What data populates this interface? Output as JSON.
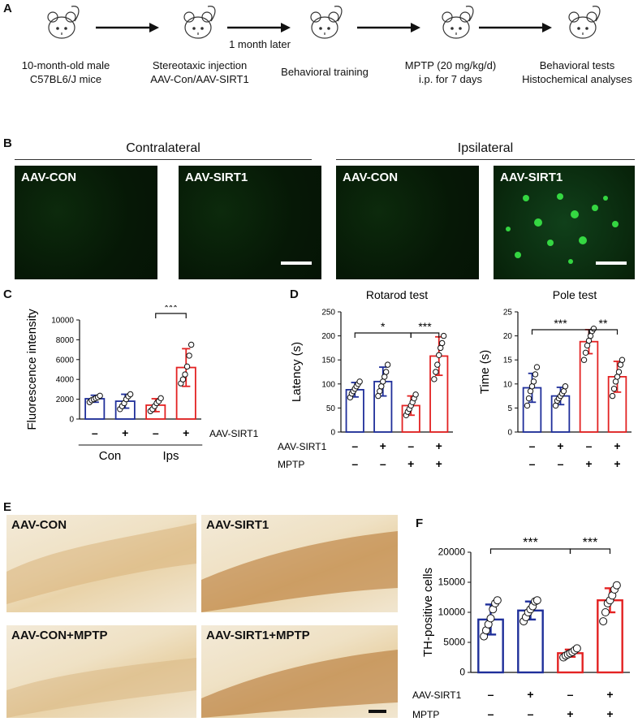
{
  "panels": {
    "A": "A",
    "B": "B",
    "C": "C",
    "D": "D",
    "E": "E",
    "F": "F"
  },
  "workflow": {
    "steps": [
      "10-month-old male\nC57BL6/J mice",
      "Stereotaxic injection\nAAV-Con/AAV-SIRT1",
      "Behavioral training",
      "MPTP (20 mg/kg/d)\ni.p. for 7 days",
      "Behavioral tests\nHistochemical analyses"
    ],
    "arrow_note": "1 month later"
  },
  "panelB": {
    "contralateral": "Contralateral",
    "ipsilateral": "Ipsilateral",
    "images": [
      "AAV-CON",
      "AAV-SIRT1",
      "AAV-CON",
      "AAV-SIRT1"
    ]
  },
  "panelE": {
    "images": [
      "AAV-CON",
      "AAV-SIRT1",
      "AAV-CON+MPTP",
      "AAV-SIRT1+MPTP"
    ]
  },
  "chart_data": [
    {
      "id": "C",
      "type": "bar",
      "ylabel": "Fluorescence intensity",
      "ylim": [
        0,
        10000
      ],
      "yticks": [
        0,
        2000,
        4000,
        6000,
        8000,
        10000
      ],
      "series": [
        {
          "color": "#1f2f9a",
          "mean": 2050,
          "sd": 350,
          "points": [
            1700,
            1900,
            2000,
            2100,
            2200,
            2350
          ]
        },
        {
          "color": "#1f2f9a",
          "mean": 1800,
          "sd": 700,
          "points": [
            1000,
            1300,
            1600,
            2000,
            2300,
            2500
          ]
        },
        {
          "color": "#e32222",
          "mean": 1400,
          "sd": 650,
          "points": [
            800,
            1000,
            1300,
            1600,
            1800,
            2100
          ]
        },
        {
          "color": "#e32222",
          "mean": 5200,
          "sd": 1900,
          "points": [
            3600,
            4000,
            4500,
            5300,
            6400,
            7500
          ]
        }
      ],
      "factor_rows": [
        {
          "label": "AAV-SIRT1",
          "values": [
            "–",
            "+",
            "–",
            "+"
          ]
        }
      ],
      "group_labels": [
        "Con",
        "Ips"
      ],
      "significance": [
        {
          "from": 2,
          "to": 3,
          "label": "***"
        }
      ]
    },
    {
      "id": "D-rotarod",
      "type": "bar",
      "title": "Rotarod test",
      "ylabel": "Latency (s)",
      "ylim": [
        0,
        250
      ],
      "yticks": [
        0,
        50,
        100,
        150,
        200,
        250
      ],
      "series": [
        {
          "color": "#1f2f9a",
          "mean": 88,
          "sd": 15,
          "points": [
            72,
            80,
            85,
            90,
            95,
            100,
            105
          ]
        },
        {
          "color": "#1f2f9a",
          "mean": 105,
          "sd": 30,
          "points": [
            75,
            85,
            95,
            105,
            115,
            125,
            140
          ]
        },
        {
          "color": "#e32222",
          "mean": 55,
          "sd": 20,
          "points": [
            35,
            42,
            48,
            55,
            62,
            70,
            78
          ]
        },
        {
          "color": "#e32222",
          "mean": 158,
          "sd": 40,
          "points": [
            110,
            125,
            140,
            160,
            175,
            185,
            200
          ]
        }
      ],
      "factor_rows": [
        {
          "label": "AAV-SIRT1",
          "values": [
            "–",
            "+",
            "–",
            "+"
          ]
        },
        {
          "label": "MPTP",
          "values": [
            "–",
            "–",
            "+",
            "+"
          ]
        }
      ],
      "significance": [
        {
          "from": 0,
          "to": 2,
          "label": "*"
        },
        {
          "from": 2,
          "to": 3,
          "label": "***"
        }
      ]
    },
    {
      "id": "D-pole",
      "type": "bar",
      "title": "Pole test",
      "ylabel": "Time (s)",
      "ylim": [
        0,
        25
      ],
      "yticks": [
        0,
        5,
        10,
        15,
        20,
        25
      ],
      "series": [
        {
          "color": "#1f2f9a",
          "mean": 9.2,
          "sd": 3,
          "points": [
            5.5,
            7,
            8.5,
            9.5,
            10.5,
            12,
            13.5
          ]
        },
        {
          "color": "#1f2f9a",
          "mean": 7.5,
          "sd": 1.8,
          "points": [
            5.5,
            6.5,
            7,
            7.5,
            8,
            8.5,
            9.5
          ]
        },
        {
          "color": "#e32222",
          "mean": 18.8,
          "sd": 2.5,
          "points": [
            15,
            16.5,
            18,
            19,
            20,
            21,
            21.5
          ]
        },
        {
          "color": "#e32222",
          "mean": 11.5,
          "sd": 3.2,
          "points": [
            7.5,
            9,
            10.5,
            11.5,
            12.5,
            14,
            15
          ]
        }
      ],
      "factor_rows": [
        {
          "label": "",
          "values": [
            "–",
            "+",
            "–",
            "+"
          ]
        },
        {
          "label": "",
          "values": [
            "–",
            "–",
            "+",
            "+"
          ]
        }
      ],
      "significance": [
        {
          "from": 0,
          "to": 2,
          "label": "***"
        },
        {
          "from": 2,
          "to": 3,
          "label": "**"
        }
      ]
    },
    {
      "id": "F",
      "type": "bar",
      "ylabel": "TH-positive cells",
      "ylim": [
        0,
        20000
      ],
      "yticks": [
        0,
        5000,
        10000,
        15000,
        20000
      ],
      "series": [
        {
          "color": "#1f2f9a",
          "mean": 8800,
          "sd": 2500,
          "points": [
            6000,
            7000,
            8000,
            9000,
            10500,
            11500,
            12000
          ]
        },
        {
          "color": "#1f2f9a",
          "mean": 10300,
          "sd": 1500,
          "points": [
            8500,
            9200,
            10000,
            10500,
            11000,
            11800,
            12000
          ]
        },
        {
          "color": "#e32222",
          "mean": 3200,
          "sd": 600,
          "points": [
            2500,
            2800,
            3000,
            3200,
            3400,
            3700,
            4000
          ]
        },
        {
          "color": "#e32222",
          "mean": 12000,
          "sd": 2000,
          "points": [
            8500,
            10000,
            11500,
            12000,
            12800,
            13800,
            14500
          ]
        }
      ],
      "factor_rows": [
        {
          "label": "AAV-SIRT1",
          "values": [
            "–",
            "+",
            "–",
            "+"
          ]
        },
        {
          "label": "MPTP",
          "values": [
            "–",
            "–",
            "+",
            "+"
          ]
        }
      ],
      "significance": [
        {
          "from": 0,
          "to": 2,
          "label": "***"
        },
        {
          "from": 2,
          "to": 3,
          "label": "***"
        }
      ]
    }
  ]
}
